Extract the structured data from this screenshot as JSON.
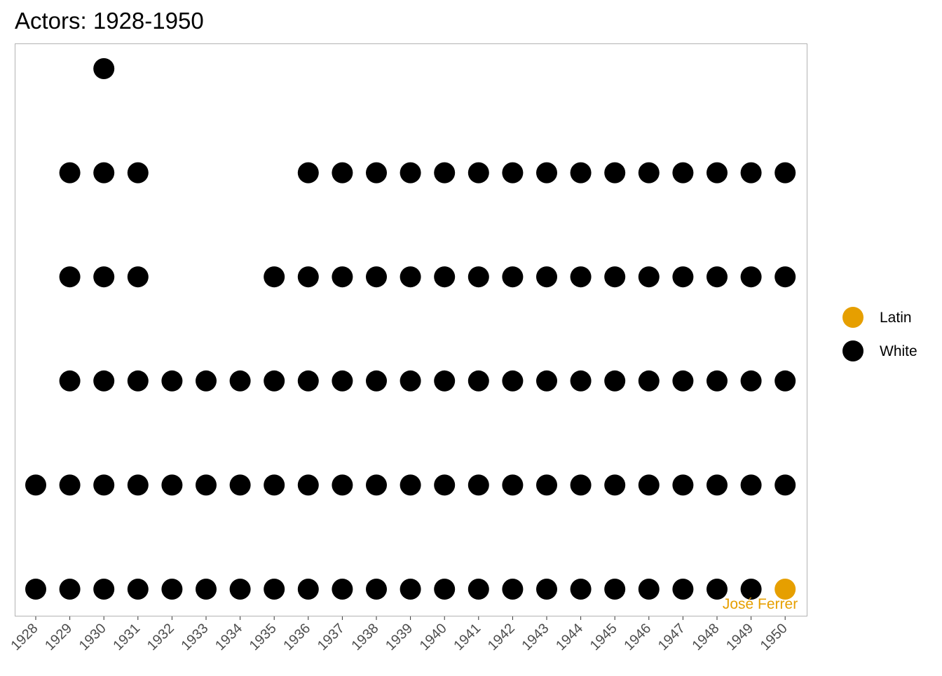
{
  "chart_data": {
    "type": "scatter",
    "title": "Actors: 1928-1950",
    "xlabel": "",
    "ylabel": "",
    "categories": [
      "1928",
      "1929",
      "1930",
      "1931",
      "1932",
      "1933",
      "1934",
      "1935",
      "1936",
      "1937",
      "1938",
      "1939",
      "1940",
      "1941",
      "1942",
      "1943",
      "1944",
      "1945",
      "1946",
      "1947",
      "1948",
      "1949",
      "1950"
    ],
    "y_axis": "count (unlabeled)",
    "ylim": [
      1,
      6
    ],
    "grid": false,
    "legend_position": "right",
    "series": [
      {
        "name": "White",
        "color": "#000000",
        "points": [
          {
            "x": "1928",
            "y": 1
          },
          {
            "x": "1928",
            "y": 2
          },
          {
            "x": "1929",
            "y": 1
          },
          {
            "x": "1929",
            "y": 2
          },
          {
            "x": "1929",
            "y": 3
          },
          {
            "x": "1929",
            "y": 4
          },
          {
            "x": "1929",
            "y": 5
          },
          {
            "x": "1930",
            "y": 1
          },
          {
            "x": "1930",
            "y": 2
          },
          {
            "x": "1930",
            "y": 3
          },
          {
            "x": "1930",
            "y": 4
          },
          {
            "x": "1930",
            "y": 5
          },
          {
            "x": "1930",
            "y": 6
          },
          {
            "x": "1931",
            "y": 1
          },
          {
            "x": "1931",
            "y": 2
          },
          {
            "x": "1931",
            "y": 3
          },
          {
            "x": "1931",
            "y": 4
          },
          {
            "x": "1931",
            "y": 5
          },
          {
            "x": "1932",
            "y": 1
          },
          {
            "x": "1932",
            "y": 2
          },
          {
            "x": "1932",
            "y": 3
          },
          {
            "x": "1933",
            "y": 1
          },
          {
            "x": "1933",
            "y": 2
          },
          {
            "x": "1933",
            "y": 3
          },
          {
            "x": "1934",
            "y": 1
          },
          {
            "x": "1934",
            "y": 2
          },
          {
            "x": "1934",
            "y": 3
          },
          {
            "x": "1935",
            "y": 1
          },
          {
            "x": "1935",
            "y": 2
          },
          {
            "x": "1935",
            "y": 3
          },
          {
            "x": "1935",
            "y": 4
          },
          {
            "x": "1936",
            "y": 1
          },
          {
            "x": "1936",
            "y": 2
          },
          {
            "x": "1936",
            "y": 3
          },
          {
            "x": "1936",
            "y": 4
          },
          {
            "x": "1936",
            "y": 5
          },
          {
            "x": "1937",
            "y": 1
          },
          {
            "x": "1937",
            "y": 2
          },
          {
            "x": "1937",
            "y": 3
          },
          {
            "x": "1937",
            "y": 4
          },
          {
            "x": "1937",
            "y": 5
          },
          {
            "x": "1938",
            "y": 1
          },
          {
            "x": "1938",
            "y": 2
          },
          {
            "x": "1938",
            "y": 3
          },
          {
            "x": "1938",
            "y": 4
          },
          {
            "x": "1938",
            "y": 5
          },
          {
            "x": "1939",
            "y": 1
          },
          {
            "x": "1939",
            "y": 2
          },
          {
            "x": "1939",
            "y": 3
          },
          {
            "x": "1939",
            "y": 4
          },
          {
            "x": "1939",
            "y": 5
          },
          {
            "x": "1940",
            "y": 1
          },
          {
            "x": "1940",
            "y": 2
          },
          {
            "x": "1940",
            "y": 3
          },
          {
            "x": "1940",
            "y": 4
          },
          {
            "x": "1940",
            "y": 5
          },
          {
            "x": "1941",
            "y": 1
          },
          {
            "x": "1941",
            "y": 2
          },
          {
            "x": "1941",
            "y": 3
          },
          {
            "x": "1941",
            "y": 4
          },
          {
            "x": "1941",
            "y": 5
          },
          {
            "x": "1942",
            "y": 1
          },
          {
            "x": "1942",
            "y": 2
          },
          {
            "x": "1942",
            "y": 3
          },
          {
            "x": "1942",
            "y": 4
          },
          {
            "x": "1942",
            "y": 5
          },
          {
            "x": "1943",
            "y": 1
          },
          {
            "x": "1943",
            "y": 2
          },
          {
            "x": "1943",
            "y": 3
          },
          {
            "x": "1943",
            "y": 4
          },
          {
            "x": "1943",
            "y": 5
          },
          {
            "x": "1944",
            "y": 1
          },
          {
            "x": "1944",
            "y": 2
          },
          {
            "x": "1944",
            "y": 3
          },
          {
            "x": "1944",
            "y": 4
          },
          {
            "x": "1944",
            "y": 5
          },
          {
            "x": "1945",
            "y": 1
          },
          {
            "x": "1945",
            "y": 2
          },
          {
            "x": "1945",
            "y": 3
          },
          {
            "x": "1945",
            "y": 4
          },
          {
            "x": "1945",
            "y": 5
          },
          {
            "x": "1946",
            "y": 1
          },
          {
            "x": "1946",
            "y": 2
          },
          {
            "x": "1946",
            "y": 3
          },
          {
            "x": "1946",
            "y": 4
          },
          {
            "x": "1946",
            "y": 5
          },
          {
            "x": "1947",
            "y": 1
          },
          {
            "x": "1947",
            "y": 2
          },
          {
            "x": "1947",
            "y": 3
          },
          {
            "x": "1947",
            "y": 4
          },
          {
            "x": "1947",
            "y": 5
          },
          {
            "x": "1948",
            "y": 1
          },
          {
            "x": "1948",
            "y": 2
          },
          {
            "x": "1948",
            "y": 3
          },
          {
            "x": "1948",
            "y": 4
          },
          {
            "x": "1948",
            "y": 5
          },
          {
            "x": "1949",
            "y": 1
          },
          {
            "x": "1949",
            "y": 2
          },
          {
            "x": "1949",
            "y": 3
          },
          {
            "x": "1949",
            "y": 4
          },
          {
            "x": "1949",
            "y": 5
          },
          {
            "x": "1950",
            "y": 2
          },
          {
            "x": "1950",
            "y": 3
          },
          {
            "x": "1950",
            "y": 4
          },
          {
            "x": "1950",
            "y": 5
          }
        ]
      },
      {
        "name": "Latin",
        "color": "#E69F00",
        "points": [
          {
            "x": "1950",
            "y": 1
          }
        ]
      }
    ],
    "legend": [
      {
        "label": "Latin",
        "color": "#E69F00"
      },
      {
        "label": "White",
        "color": "#000000"
      }
    ],
    "annotations": [
      {
        "text": "José Ferrer",
        "x": "1950",
        "y": 1,
        "color": "#E69F00"
      }
    ]
  }
}
